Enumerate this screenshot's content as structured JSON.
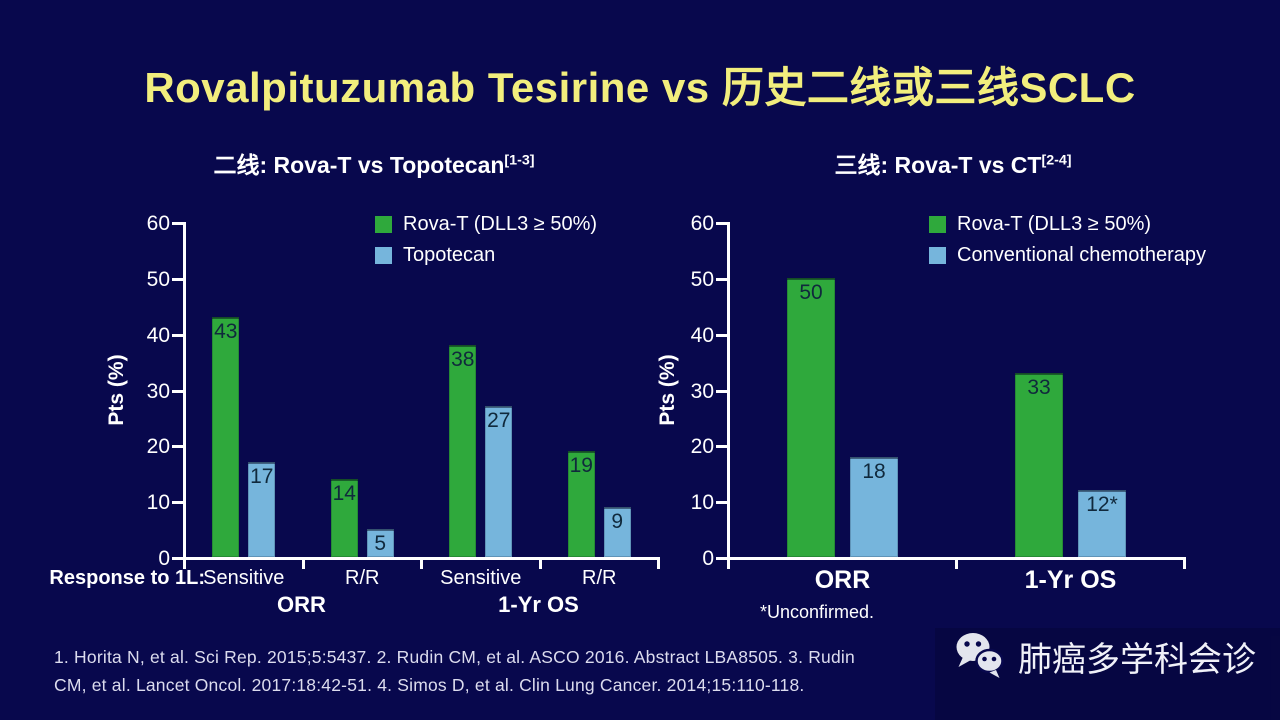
{
  "title": "Rovalpituzumab Tesirine vs 历史二线或三线SCLC",
  "colors": {
    "background": "#08084d",
    "title_text": "#f2ee7d",
    "axis_text": "#ffffff",
    "rova_t_green": "#2fa93c",
    "comparator_blue": "#76b5dc",
    "reference_text": "#dcdcee"
  },
  "chart_data": [
    {
      "type": "bar",
      "title": "二线: Rova-T vs Topotecan",
      "title_ref": "[1-3]",
      "ylabel": "Pts (%)",
      "ylim": [
        0,
        60
      ],
      "yticks": [
        0,
        10,
        20,
        30,
        40,
        50,
        60
      ],
      "categories": [
        "Sensitive",
        "R/R",
        "Sensitive",
        "R/R"
      ],
      "group_labels": [
        "ORR",
        "1-Yr OS"
      ],
      "axis_prefix": "Response to 1L:",
      "legend_position": "top-right",
      "grid": false,
      "series": [
        {
          "key": "rova-t",
          "name": "Rova-T (DLL3 ≥ 50%)",
          "color": "#2fa93c",
          "values": [
            43,
            14,
            38,
            19
          ]
        },
        {
          "key": "topotecan",
          "name": "Topotecan",
          "color": "#76b5dc",
          "values": [
            17,
            5,
            27,
            9
          ]
        }
      ]
    },
    {
      "type": "bar",
      "title": "三线: Rova-T vs CT",
      "title_ref": "[2-4]",
      "ylabel": "Pts (%)",
      "ylim": [
        0,
        60
      ],
      "yticks": [
        0,
        10,
        20,
        30,
        40,
        50,
        60
      ],
      "categories": [
        "ORR",
        "1-Yr OS"
      ],
      "footnote": "*Unconfirmed.",
      "legend_position": "top-right",
      "grid": false,
      "series": [
        {
          "key": "rova-t",
          "name": "Rova-T (DLL3 ≥ 50%)",
          "color": "#2fa93c",
          "values": [
            50,
            33
          ]
        },
        {
          "key": "conventional-chemotherapy",
          "name": "Conventional chemotherapy",
          "color": "#76b5dc",
          "values": [
            18,
            12
          ],
          "labels": [
            "18",
            "12*"
          ]
        }
      ]
    }
  ],
  "references": {
    "lines": [
      "1. Horita N, et al. Sci Rep. 2015;5:5437. 2. Rudin CM, et al. ASCO 2016. Abstract LBA8505. 3. Rudin",
      "CM, et al. Lancet Oncol. 2017:18:42-51. 4. Simos D, et al. Clin Lung Cancer. 2014;15:110-118."
    ]
  },
  "wechat": {
    "name": "肺癌多学科会诊"
  }
}
